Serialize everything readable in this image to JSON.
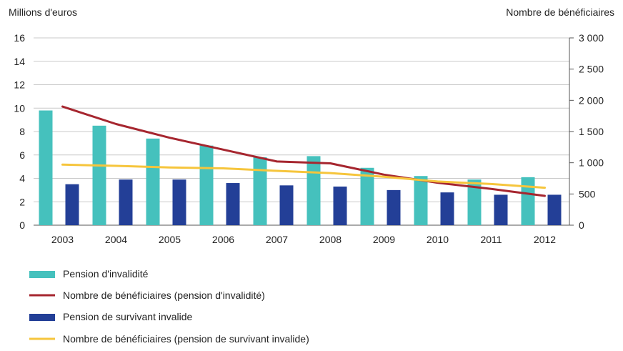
{
  "chart_data": {
    "type": "bar",
    "left_axis_title": "Millions d'euros",
    "right_axis_title": "Nombre de bénéficiaires",
    "categories": [
      "2003",
      "2004",
      "2005",
      "2006",
      "2007",
      "2008",
      "2009",
      "2010",
      "2011",
      "2012"
    ],
    "left_ylim": [
      0,
      16
    ],
    "left_ticks": [
      "0",
      "2",
      "4",
      "6",
      "8",
      "10",
      "12",
      "14",
      "16"
    ],
    "right_ylim": [
      0,
      3000
    ],
    "right_ticks": [
      "0",
      "500",
      "1 000",
      "1 500",
      "2 000",
      "2 500",
      "3 000"
    ],
    "series": [
      {
        "name": "Pension d'invalidité",
        "kind": "bar",
        "axis": "left",
        "color": "#45c1bd",
        "values": [
          9.8,
          8.5,
          7.4,
          6.8,
          5.8,
          5.9,
          4.9,
          4.2,
          3.9,
          4.1
        ]
      },
      {
        "name": "Nombre de bénéficiaires (pension d'invalidité)",
        "kind": "line",
        "axis": "right",
        "color": "#a6262f",
        "values": [
          1900,
          1620,
          1400,
          1210,
          1020,
          990,
          810,
          680,
          580,
          470
        ]
      },
      {
        "name": "Pension de survivant invalide",
        "kind": "bar",
        "axis": "left",
        "color": "#233f97",
        "values": [
          3.5,
          3.9,
          3.9,
          3.6,
          3.4,
          3.3,
          3.0,
          2.8,
          2.6,
          2.6
        ]
      },
      {
        "name": "Nombre de bénéficiaires (pension de survivant invalide)",
        "kind": "line",
        "axis": "right",
        "color": "#f6c53c",
        "values": [
          970,
          950,
          925,
          910,
          870,
          835,
          775,
          700,
          660,
          600
        ]
      }
    ],
    "legend_position": "bottom-left",
    "grid": "horizontal"
  }
}
